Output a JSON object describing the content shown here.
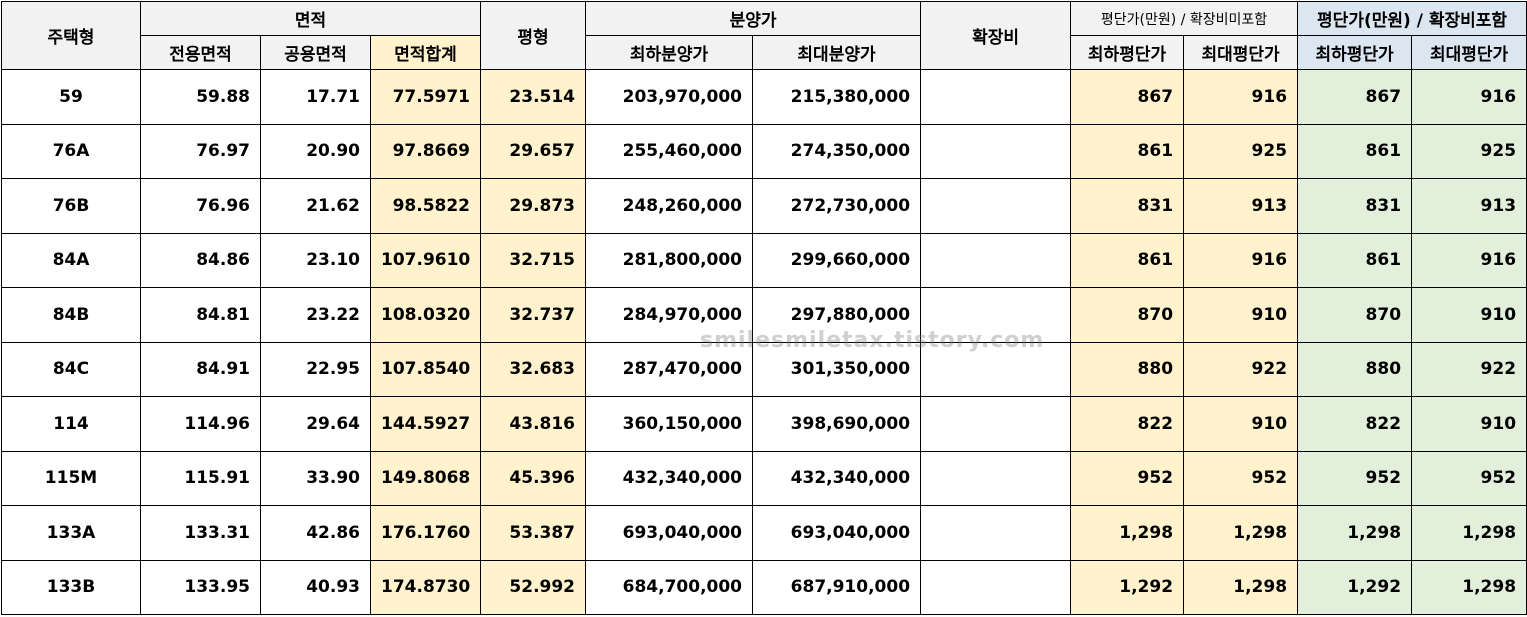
{
  "table": {
    "header": [
      "주택형",
      "면적",
      "평형",
      "분양가",
      "확장비",
      "평단가(만원) / 확장비미포함",
      "평단가(만원) / 확장비포함"
    ],
    "subheader": [
      "전용면적",
      "공용면적",
      "면적합계",
      "최하분양가",
      "최대분양가",
      "최하평단가",
      "최대평단가",
      "최하평단가",
      "최대평단가"
    ],
    "rows": [
      [
        "59",
        "59.88",
        "17.71",
        "77.5971",
        "23.514",
        "203,970,000",
        "215,380,000",
        "867",
        "916",
        "867",
        "916"
      ],
      [
        "76A",
        "76.97",
        "20.90",
        "97.8669",
        "29.657",
        "255,460,000",
        "274,350,000",
        "861",
        "925",
        "861",
        "925"
      ],
      [
        "76B",
        "76.96",
        "21.62",
        "98.5822",
        "29.873",
        "248,260,000",
        "272,730,000",
        "831",
        "913",
        "831",
        "913"
      ],
      [
        "84A",
        "84.86",
        "23.10",
        "107.9610",
        "32.715",
        "281,800,000",
        "299,660,000",
        "861",
        "916",
        "861",
        "916"
      ],
      [
        "84B",
        "84.81",
        "23.22",
        "108.0320",
        "32.737",
        "284,970,000",
        "297,880,000",
        "870",
        "910",
        "870",
        "910"
      ],
      [
        "84C",
        "84.91",
        "22.95",
        "107.8540",
        "32.683",
        "287,470,000",
        "301,350,000",
        "880",
        "922",
        "880",
        "922"
      ],
      [
        "114",
        "114.96",
        "29.64",
        "144.5927",
        "43.816",
        "360,150,000",
        "398,690,000",
        "822",
        "910",
        "822",
        "910"
      ],
      [
        "115M",
        "115.91",
        "33.90",
        "149.8068",
        "45.396",
        "432,340,000",
        "432,340,000",
        "952",
        "952",
        "952",
        "952"
      ],
      [
        "133A",
        "133.31",
        "42.86",
        "176.1760",
        "53.387",
        "693,040,000",
        "693,040,000",
        "1,298",
        "1,298",
        "1,298",
        "1,298"
      ],
      [
        "133B",
        "133.95",
        "40.93",
        "174.8730",
        "52.992",
        "684,700,000",
        "687,910,000",
        "1,292",
        "1,298",
        "1,292",
        "1,298"
      ]
    ]
  },
  "watermark": "smilesmiletax.tistory.com"
}
